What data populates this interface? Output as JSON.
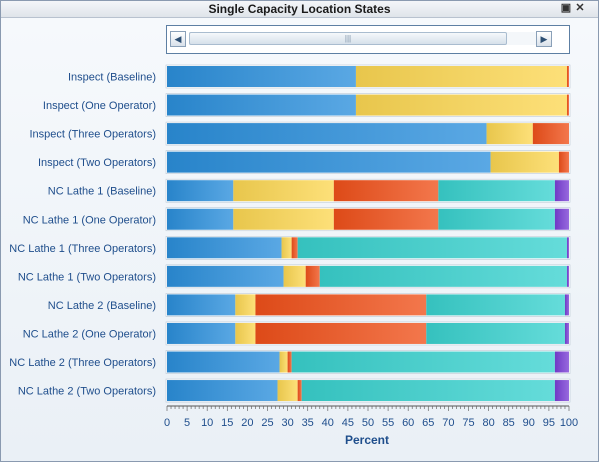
{
  "window": {
    "title": "Single Capacity Location States",
    "pin_icon": "pin-icon",
    "close_icon": "close-icon"
  },
  "scrollbar": {
    "left_arrow": "left-arrow-icon",
    "right_arrow": "right-arrow-icon",
    "thumb_grip": "|||"
  },
  "colors": {
    "blue": "#2c8fdc",
    "yellow": "#fcd753",
    "red": "#f0501a",
    "teal": "#3ad2cf",
    "purple": "#7a3fd6",
    "axis_label": "#1f4e8c",
    "tick_label": "#1f4e8c"
  },
  "chart_data": {
    "type": "bar",
    "orientation": "horizontal",
    "stacked": true,
    "title": "Single Capacity Location States",
    "xlabel": "Percent",
    "xlim": [
      0,
      100
    ],
    "xticks": [
      0,
      5,
      10,
      15,
      20,
      25,
      30,
      35,
      40,
      45,
      50,
      55,
      60,
      65,
      70,
      75,
      80,
      85,
      90,
      95,
      100
    ],
    "categories": [
      "Inspect (Baseline)",
      "Inspect (One Operator)",
      "Inspect (Three Operators)",
      "Inspect (Two Operators)",
      "NC Lathe 1 (Baseline)",
      "NC Lathe 1 (One Operator)",
      "NC Lathe 1 (Three Operators)",
      "NC Lathe 1 (Two Operators)",
      "NC Lathe 2 (Baseline)",
      "NC Lathe 2 (One Operator)",
      "NC Lathe 2 (Three Operators)",
      "NC Lathe 2 (Two Operators)"
    ],
    "series": [
      {
        "color": "#2c8fdc",
        "values": [
          47.0,
          47.0,
          79.5,
          80.5,
          16.5,
          16.5,
          28.5,
          29.0,
          17.0,
          17.0,
          28.0,
          27.5
        ]
      },
      {
        "color": "#fcd753",
        "values": [
          52.5,
          52.5,
          11.5,
          17.0,
          25.0,
          25.0,
          2.5,
          5.5,
          5.0,
          5.0,
          2.0,
          5.0
        ]
      },
      {
        "color": "#f0501a",
        "values": [
          0.5,
          0.5,
          9.0,
          2.5,
          26.0,
          26.0,
          1.5,
          3.5,
          42.5,
          42.5,
          1.0,
          1.0
        ]
      },
      {
        "color": "#3ad2cf",
        "values": [
          0.0,
          0.0,
          0.0,
          0.0,
          29.0,
          29.0,
          67.0,
          61.5,
          34.5,
          34.5,
          65.5,
          63.0
        ]
      },
      {
        "color": "#7a3fd6",
        "values": [
          0.0,
          0.0,
          0.0,
          0.0,
          3.5,
          3.5,
          0.5,
          0.5,
          1.0,
          1.0,
          3.5,
          3.5
        ]
      }
    ],
    "grid": false,
    "legend": "none"
  }
}
